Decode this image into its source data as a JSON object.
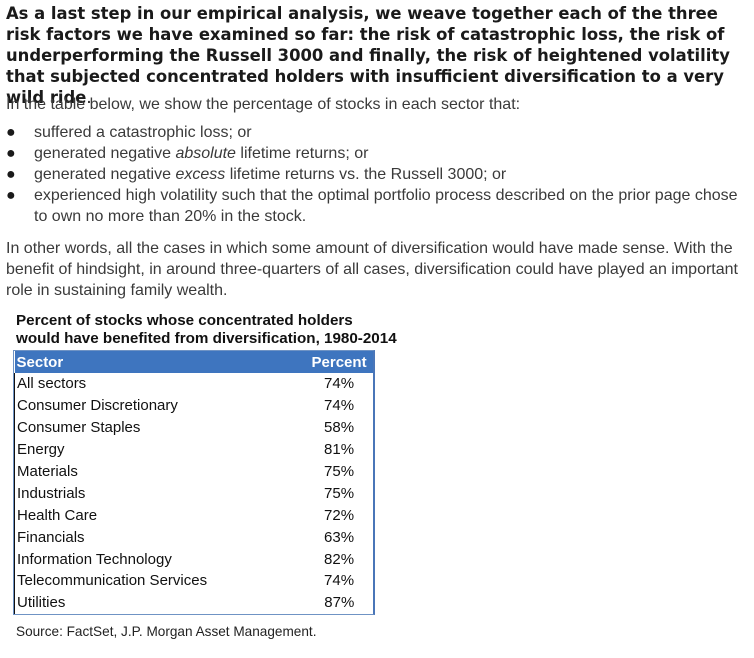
{
  "intro": {
    "bold_text": "As a last step in our empirical analysis, we weave together each of the three risk factors we have examined so far: the risk of catastrophic loss, the risk of underperforming the Russell 3000 and finally, the risk of heightened volatility that subjected concentrated holders with insufficient diversification to a very wild ride",
    "trailing": "."
  },
  "lead": "In the table below, we show the percentage of stocks in each sector that:",
  "bullets": [
    {
      "before": "suffered a catastrophic loss; or",
      "emph": "",
      "after": ""
    },
    {
      "before": "generated negative ",
      "emph": "absolute",
      "after": " lifetime returns; or"
    },
    {
      "before": "generated negative ",
      "emph": "excess",
      "after": " lifetime returns vs. the Russell 3000; or"
    },
    {
      "before": "experienced high volatility such that the optimal portfolio process described on the prior page chose to own no more than 20% in the stock.",
      "emph": "",
      "after": ""
    }
  ],
  "closing": "In other words, all the cases in which some amount of diversification would have made sense.  With the benefit of hindsight, in around three-quarters of all cases, diversification could have played an important role in sustaining family wealth.",
  "table": {
    "title_line1": "Percent of stocks whose concentrated holders",
    "title_line2": "would have benefited from diversification, 1980-2014",
    "header_sector": "Sector",
    "header_percent": "Percent",
    "rows": [
      {
        "sector": "All sectors",
        "percent": "74%"
      },
      {
        "sector": "Consumer Discretionary",
        "percent": "74%"
      },
      {
        "sector": "Consumer Staples",
        "percent": "58%"
      },
      {
        "sector": "Energy",
        "percent": "81%"
      },
      {
        "sector": "Materials",
        "percent": "75%"
      },
      {
        "sector": "Industrials",
        "percent": "75%"
      },
      {
        "sector": "Health Care",
        "percent": "72%"
      },
      {
        "sector": "Financials",
        "percent": "63%"
      },
      {
        "sector": "Information Technology",
        "percent": "82%"
      },
      {
        "sector": "Telecommunication Services",
        "percent": "74%"
      },
      {
        "sector": "Utilities",
        "percent": "87%"
      }
    ]
  },
  "source": "Source: FactSet, J.P. Morgan Asset Management.",
  "colors": {
    "header_bg": "#3e75bf",
    "header_text": "#ffffff",
    "border": "#6f93c4"
  }
}
